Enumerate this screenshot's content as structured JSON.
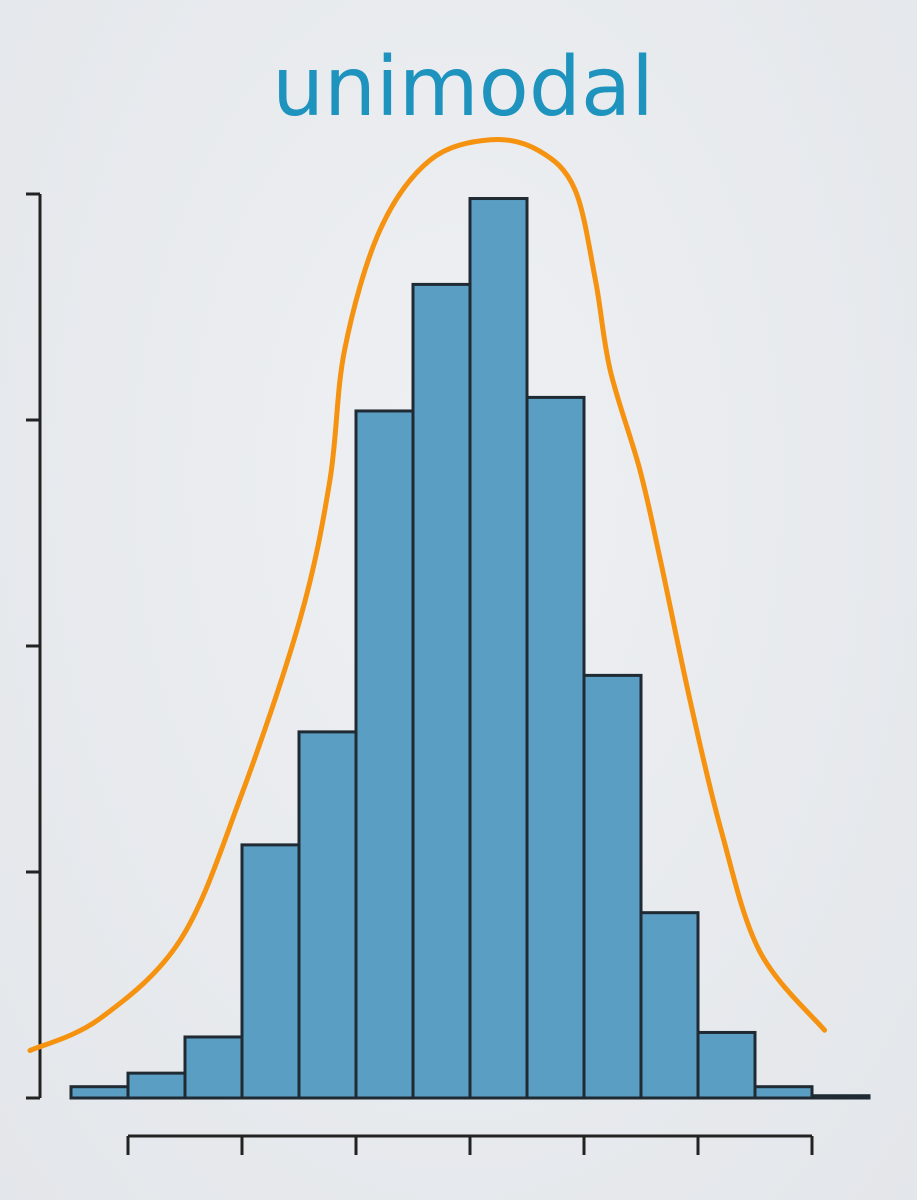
{
  "chart_data": {
    "type": "bar",
    "title": "unimodal",
    "xlabel": "",
    "ylabel": "",
    "xlim": [
      -0.5,
      6.5
    ],
    "ylim": [
      0,
      4
    ],
    "x_ticks": [
      0,
      1,
      2,
      3,
      4,
      5,
      6
    ],
    "y_ticks": [
      0,
      1,
      2,
      3,
      4
    ],
    "tick_labels_shown": false,
    "grid": false,
    "bin_edges": [
      -0.5,
      0,
      0.5,
      1,
      1.5,
      2,
      2.5,
      3,
      3.5,
      4,
      4.5,
      5,
      5.5,
      6,
      6.5
    ],
    "values": [
      0.05,
      0.11,
      0.27,
      1.12,
      1.62,
      3.04,
      3.6,
      3.98,
      3.1,
      1.87,
      0.82,
      0.29,
      0.05,
      0.01
    ],
    "curve": {
      "x": [
        -0.86,
        -0.25,
        0.46,
        0.98,
        1.51,
        1.77,
        1.9,
        2.21,
        2.65,
        3.18,
        3.61,
        3.92,
        4.1,
        4.23,
        4.49,
        4.67,
        4.93,
        5.2,
        5.54,
        6.11
      ],
      "y": [
        0.21,
        0.35,
        0.7,
        1.32,
        2.12,
        2.73,
        3.31,
        3.84,
        4.15,
        4.24,
        4.19,
        4.02,
        3.62,
        3.22,
        2.78,
        2.38,
        1.76,
        1.19,
        0.65,
        0.3
      ]
    },
    "colors": {
      "bars": "#5a9ec4",
      "bar_edge": "#1f2a33",
      "curve": "#f5920f",
      "title": "#1d93bd",
      "axes": "#222222"
    }
  }
}
